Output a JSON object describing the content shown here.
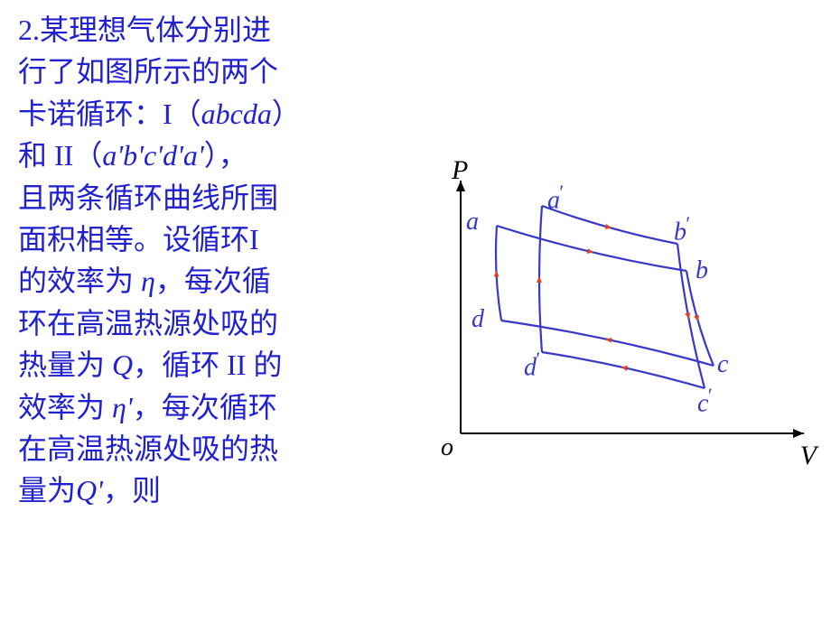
{
  "text": {
    "line1_a": "2.某理想气体分别进",
    "line2": "行了如图所示的两个",
    "line3_a": "卡诺循环：I（",
    "line3_b": "abcda",
    "line3_c": "）",
    "line4_a": "和 II（",
    "line4_b": "a'b'c'd'a'",
    "line4_c": "），",
    "line5": "且两条循环曲线所围",
    "line6": "面积相等。设循环I",
    "line7_a": "的效率为 ",
    "line7_eta": "η",
    "line7_b": "，每次循",
    "line8": "环在高温热源处吸的",
    "line9_a": "热量为 ",
    "line9_q": "Q",
    "line9_b": "，循环 II 的",
    "line10_a": "效率为 ",
    "line10_eta": "η'",
    "line10_b": "，每次循环",
    "line11": "在高温热源处吸的热",
    "line12_a": "量为",
    "line12_q": "Q'",
    "line12_b": "，则"
  },
  "axis": {
    "P": "P",
    "V": "V",
    "o": "o"
  },
  "points": {
    "a": "a",
    "b": "b",
    "c": "c",
    "d": "d",
    "ap": "a",
    "bp": "b",
    "cp": "c",
    "dp": "d",
    "prime": "′"
  },
  "colors": {
    "text": "#2020d0",
    "curve": "#3838c8",
    "arrow": "#e04020",
    "axis": "#000000",
    "bg": "#ffffff"
  },
  "chart": {
    "type": "pv-diagram",
    "axis_font": 30,
    "label_font": 28,
    "stroke_width": 2.2,
    "arrow_size": 6,
    "cycle1": {
      "a": [
        100,
        70
      ],
      "b": [
        310,
        120
      ],
      "c": [
        340,
        225
      ],
      "d": [
        105,
        175
      ]
    },
    "cycle2": {
      "a": [
        150,
        48
      ],
      "b": [
        300,
        90
      ],
      "c": [
        330,
        250
      ],
      "d": [
        150,
        210
      ]
    },
    "label_pos": {
      "a": [
        66,
        50
      ],
      "ap": [
        156,
        20
      ],
      "b": [
        320,
        104
      ],
      "bp": [
        296,
        55
      ],
      "c": [
        344,
        208
      ],
      "cp": [
        322,
        245
      ],
      "d": [
        72,
        158
      ],
      "dp": [
        130,
        205
      ]
    }
  }
}
